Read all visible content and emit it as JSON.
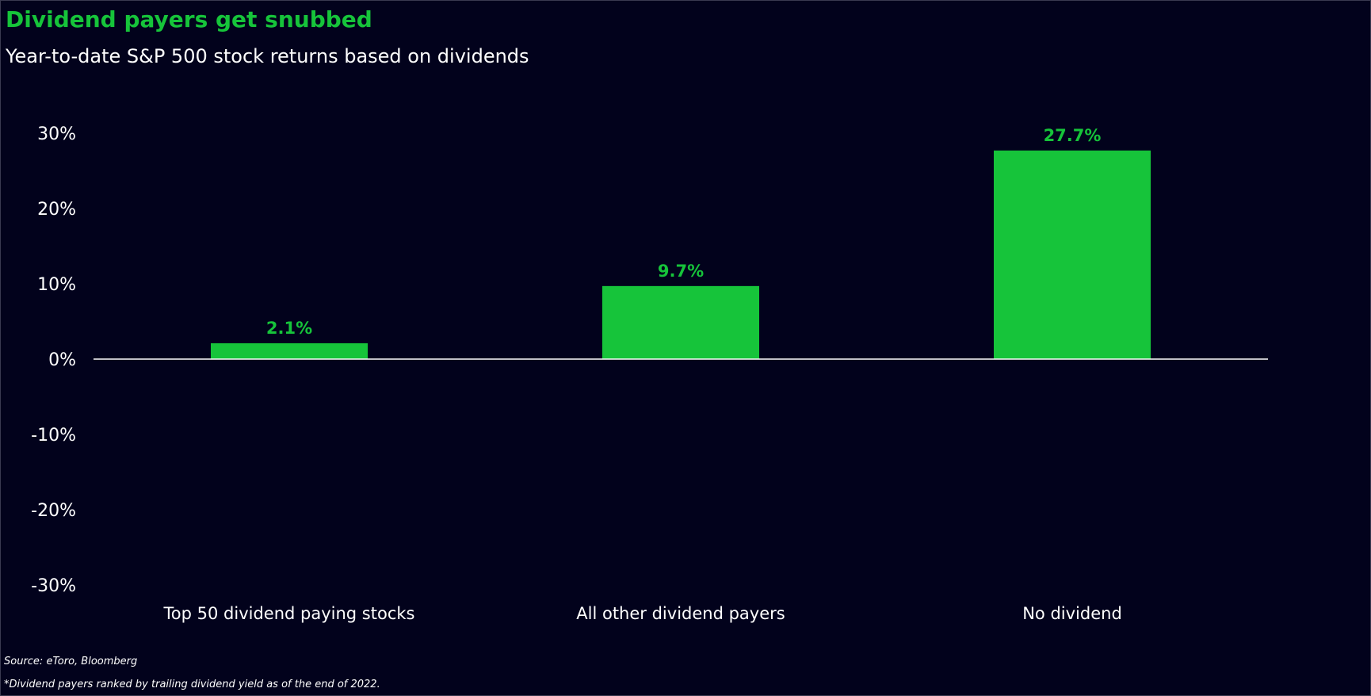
{
  "header": {
    "title": "Dividend payers get snubbed",
    "subtitle": "Year-to-date S&P 500 stock returns based on dividends"
  },
  "footer": {
    "source": "Source: eToro, Bloomberg",
    "footnote": "*Dividend payers ranked by trailing dividend yield as of the end of 2022."
  },
  "colors": {
    "background": "#02021c",
    "bar": "#16c43a",
    "title": "#16c43a",
    "text": "#ffffff",
    "axis": "#ffffff"
  },
  "chart_data": {
    "type": "bar",
    "categories": [
      "Top 50 dividend paying stocks",
      "All other dividend payers",
      "No dividend"
    ],
    "values": [
      2.1,
      9.7,
      27.7
    ],
    "data_labels": [
      "2.1%",
      "9.7%",
      "27.7%"
    ],
    "title": "Dividend payers get snubbed",
    "subtitle": "Year-to-date S&P 500 stock returns based on dividends",
    "xlabel": "",
    "ylabel": "",
    "ylim": [
      -30,
      30
    ],
    "yticks": [
      30,
      20,
      10,
      0,
      -10,
      -20,
      -30
    ],
    "ytick_labels": [
      "30%",
      "20%",
      "10%",
      "0%",
      "-10%",
      "-20%",
      "-30%"
    ],
    "grid": false,
    "legend": "none"
  }
}
